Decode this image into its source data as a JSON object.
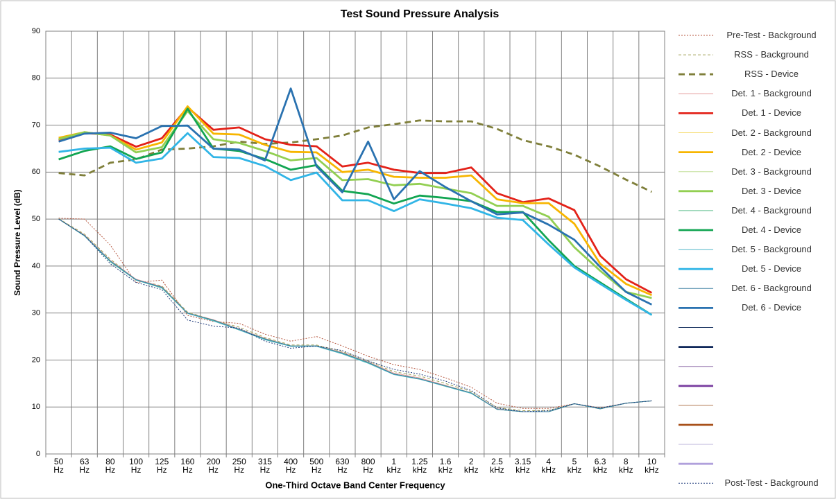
{
  "chart_data": {
    "type": "line",
    "title": "Test Sound Pressure Analysis",
    "x_label": "One-Third Octave Band Center Frequency",
    "y_label": "Sound Pressure Level (dB)",
    "categories": [
      "50 Hz",
      "63 Hz",
      "80 Hz",
      "100 Hz",
      "125 Hz",
      "160 Hz",
      "200 Hz",
      "250 Hz",
      "315 Hz",
      "400 Hz",
      "500 Hz",
      "630 Hz",
      "800 Hz",
      "1 kHz",
      "1.25 kHz",
      "1.6 kHz",
      "2 kHz",
      "2.5 kHz",
      "3.15 kHz",
      "4 kHz",
      "5 kHz",
      "6.3 kHz",
      "8 kHz",
      "10 kHz"
    ],
    "ylim": [
      0,
      90
    ],
    "yticks": [
      0,
      10,
      20,
      30,
      40,
      50,
      60,
      70,
      80,
      90
    ],
    "grid": true,
    "legend": "right",
    "series": [
      {
        "name": "Pre-Test - Background",
        "color": "#b5563e",
        "style": "dotted",
        "weight": "thin",
        "values": [
          50.2,
          50,
          44.5,
          36.5,
          37,
          29.5,
          28.2,
          27.8,
          25.5,
          24,
          25,
          23,
          20.8,
          19,
          18,
          16.2,
          14.2,
          10.8,
          9.7,
          9.7,
          10.7,
          9.8,
          10.8,
          11.3
        ]
      },
      {
        "name": "RSS - Background",
        "color": "#a4a45a",
        "style": "dashed",
        "weight": "thin",
        "values": [
          50.1,
          46.8,
          41.5,
          37,
          35.8,
          30.2,
          28.5,
          27,
          24.8,
          23.2,
          23.2,
          21.8,
          19.8,
          17.5,
          16.6,
          15,
          13.3,
          9.9,
          9.2,
          9.3,
          10.7,
          9.7,
          10.8,
          11.3
        ]
      },
      {
        "name": "RSS - Device",
        "color": "#7f7f3a",
        "style": "dashed",
        "weight": "thick",
        "values": [
          59.8,
          59.3,
          62,
          62.7,
          64.8,
          65,
          65.5,
          66.5,
          66,
          66.3,
          67,
          67.8,
          69.5,
          70.2,
          71,
          70.8,
          70.8,
          69.2,
          66.8,
          65.5,
          63.7,
          61.2,
          58.4,
          55.8
        ]
      },
      {
        "name": "Det. 1 - Background",
        "color": "#e59a9a",
        "style": "solid",
        "weight": "thin",
        "values": [
          50,
          46.6,
          41.2,
          37.2,
          35.6,
          30,
          28.6,
          26.6,
          24.6,
          23,
          23,
          21.6,
          19.6,
          17.2,
          16.2,
          14.6,
          13,
          9.6,
          9,
          9,
          10.7,
          9.6,
          10.8,
          11.3
        ]
      },
      {
        "name": "Det. 1 - Device",
        "color": "#e32219",
        "style": "solid",
        "weight": "thick",
        "values": [
          66.8,
          68.3,
          68,
          65.4,
          67.2,
          73.8,
          69,
          69.5,
          67,
          65.8,
          65.5,
          61.2,
          62,
          60.5,
          59.8,
          59.8,
          61,
          55.5,
          53.6,
          54.4,
          51.9,
          42.2,
          37.2,
          34.3
        ]
      },
      {
        "name": "Det. 2 - Background",
        "color": "#f6dc6e",
        "style": "solid",
        "weight": "thin",
        "values": [
          50,
          46.5,
          41,
          37,
          35.5,
          30,
          28.5,
          26.5,
          24.5,
          23,
          23,
          21.5,
          19.5,
          17,
          16,
          14.5,
          13,
          9.5,
          9,
          9,
          10.7,
          9.6,
          10.8,
          11.3
        ]
      },
      {
        "name": "Det. 2 - Device",
        "color": "#f7b500",
        "style": "solid",
        "weight": "thick",
        "values": [
          67.3,
          68.5,
          67.8,
          64.8,
          66.3,
          74,
          68.2,
          68,
          65.8,
          64.3,
          64.2,
          60,
          60.5,
          59,
          58.8,
          58.8,
          59.3,
          54.2,
          53.4,
          53.4,
          49,
          40.5,
          36.2,
          33.8
        ]
      },
      {
        "name": "Det. 3 - Background",
        "color": "#c2df98",
        "style": "solid",
        "weight": "thin",
        "values": [
          50,
          46.5,
          41,
          37.1,
          35.4,
          30,
          28.4,
          26.5,
          24.4,
          23,
          23,
          21.4,
          19.4,
          17,
          16,
          14.4,
          13,
          9.5,
          9,
          9,
          10.7,
          9.6,
          10.8,
          11.3
        ]
      },
      {
        "name": "Det. 3 - Device",
        "color": "#92cf52",
        "style": "solid",
        "weight": "thick",
        "values": [
          67,
          68.5,
          67.8,
          64.2,
          65.3,
          73,
          67,
          66.2,
          64.5,
          62.5,
          63,
          58.3,
          58.5,
          57.2,
          57.5,
          56.5,
          55.5,
          52.8,
          52.8,
          50.5,
          44,
          39,
          34.5,
          33.2
        ]
      },
      {
        "name": "Det. 4 - Background",
        "color": "#5dbd8c",
        "style": "solid",
        "weight": "thin",
        "values": [
          50,
          46.4,
          40.9,
          37,
          35.3,
          29.9,
          28.4,
          26.4,
          24.4,
          22.9,
          23,
          21.4,
          19.4,
          17,
          16,
          14.4,
          12.9,
          9.5,
          9,
          9,
          10.7,
          9.6,
          10.8,
          11.3
        ]
      },
      {
        "name": "Det. 4 - Device",
        "color": "#12a552",
        "style": "solid",
        "weight": "thick",
        "values": [
          62.7,
          64.5,
          65.5,
          62.8,
          64.2,
          73.5,
          65,
          64.5,
          62.8,
          60.5,
          61.5,
          56,
          55.3,
          53.3,
          55,
          54.5,
          53.8,
          51.5,
          51.5,
          45.5,
          40,
          36.5,
          33,
          29.6
        ]
      },
      {
        "name": "Det. 5 - Background",
        "color": "#4db5c6",
        "style": "solid",
        "weight": "thin",
        "values": [
          50,
          46.4,
          41,
          37,
          35.4,
          29.9,
          28.3,
          26.4,
          24.3,
          22.9,
          22.9,
          21.3,
          19.3,
          16.9,
          15.9,
          14.4,
          12.9,
          9.5,
          9,
          9,
          10.7,
          9.6,
          10.8,
          11.3
        ]
      },
      {
        "name": "Det. 5 - Device",
        "color": "#31b5e6",
        "style": "solid",
        "weight": "thick",
        "values": [
          64.3,
          65,
          65.2,
          62,
          62.9,
          68.3,
          63.2,
          63,
          61.3,
          58.3,
          59.9,
          54,
          54,
          51.7,
          54.2,
          53.3,
          52.3,
          50.3,
          49.8,
          44.6,
          39.7,
          36.2,
          32.8,
          29.6
        ]
      },
      {
        "name": "Det. 6 - Background",
        "color": "#3a7ea0",
        "style": "solid",
        "weight": "thin",
        "values": [
          50,
          46.5,
          41.1,
          37.1,
          35.5,
          30,
          28.5,
          26.5,
          24.5,
          23,
          23,
          21.5,
          19.5,
          17,
          16,
          14.5,
          13,
          9.5,
          9,
          9,
          10.7,
          9.6,
          10.8,
          11.3
        ]
      },
      {
        "name": "Det. 6 - Device",
        "color": "#2a72b0",
        "style": "solid",
        "weight": "thick",
        "values": [
          66.5,
          68.2,
          68.4,
          67.2,
          69.8,
          69.9,
          65,
          64.8,
          62.5,
          77.8,
          61.2,
          55.7,
          66.5,
          54.2,
          60.2,
          56.8,
          53.8,
          51,
          51.4,
          48.8,
          45.6,
          39.8,
          34.5,
          31.8
        ]
      },
      {
        "name": null,
        "color": "#1f3864",
        "style": "solid",
        "weight": "thin",
        "values": [
          null,
          null,
          null,
          null,
          null,
          null,
          null,
          null,
          null,
          null,
          null,
          null,
          null,
          null,
          null,
          null,
          null,
          null,
          null,
          null,
          null,
          null,
          null,
          null
        ]
      },
      {
        "name": null,
        "color": "#10285a",
        "style": "solid",
        "weight": "thick",
        "values": [
          null,
          null,
          null,
          null,
          null,
          null,
          null,
          null,
          null,
          null,
          null,
          null,
          null,
          null,
          null,
          null,
          null,
          null,
          null,
          null,
          null,
          null,
          null,
          null
        ]
      },
      {
        "name": null,
        "color": "#8f6fa8",
        "style": "solid",
        "weight": "thin",
        "values": [
          null,
          null,
          null,
          null,
          null,
          null,
          null,
          null,
          null,
          null,
          null,
          null,
          null,
          null,
          null,
          null,
          null,
          null,
          null,
          null,
          null,
          null,
          null,
          null
        ]
      },
      {
        "name": null,
        "color": "#7a3fa0",
        "style": "solid",
        "weight": "thick",
        "values": [
          null,
          null,
          null,
          null,
          null,
          null,
          null,
          null,
          null,
          null,
          null,
          null,
          null,
          null,
          null,
          null,
          null,
          null,
          null,
          null,
          null,
          null,
          null,
          null
        ]
      },
      {
        "name": null,
        "color": "#b07a55",
        "style": "solid",
        "weight": "thin",
        "values": [
          null,
          null,
          null,
          null,
          null,
          null,
          null,
          null,
          null,
          null,
          null,
          null,
          null,
          null,
          null,
          null,
          null,
          null,
          null,
          null,
          null,
          null,
          null,
          null
        ]
      },
      {
        "name": null,
        "color": "#a8501a",
        "style": "solid",
        "weight": "thick",
        "values": [
          null,
          null,
          null,
          null,
          null,
          null,
          null,
          null,
          null,
          null,
          null,
          null,
          null,
          null,
          null,
          null,
          null,
          null,
          null,
          null,
          null,
          null,
          null,
          null
        ]
      },
      {
        "name": null,
        "color": "#c8c0e0",
        "style": "solid",
        "weight": "thin",
        "values": [
          null,
          null,
          null,
          null,
          null,
          null,
          null,
          null,
          null,
          null,
          null,
          null,
          null,
          null,
          null,
          null,
          null,
          null,
          null,
          null,
          null,
          null,
          null,
          null
        ]
      },
      {
        "name": null,
        "color": "#b0a0dc",
        "style": "solid",
        "weight": "thick",
        "values": [
          null,
          null,
          null,
          null,
          null,
          null,
          null,
          null,
          null,
          null,
          null,
          null,
          null,
          null,
          null,
          null,
          null,
          null,
          null,
          null,
          null,
          null,
          null,
          null
        ]
      },
      {
        "name": "Post-Test - Background",
        "color": "#1f3a7a",
        "style": "dotted",
        "weight": "thin",
        "values": [
          50,
          46.5,
          40.5,
          36.5,
          35,
          28.5,
          27.2,
          26.8,
          24,
          22.5,
          23,
          22,
          19.8,
          18,
          17,
          15.5,
          13.5,
          9.8,
          9,
          9.2,
          10.7,
          9.8,
          10.8,
          11.3
        ]
      }
    ]
  }
}
